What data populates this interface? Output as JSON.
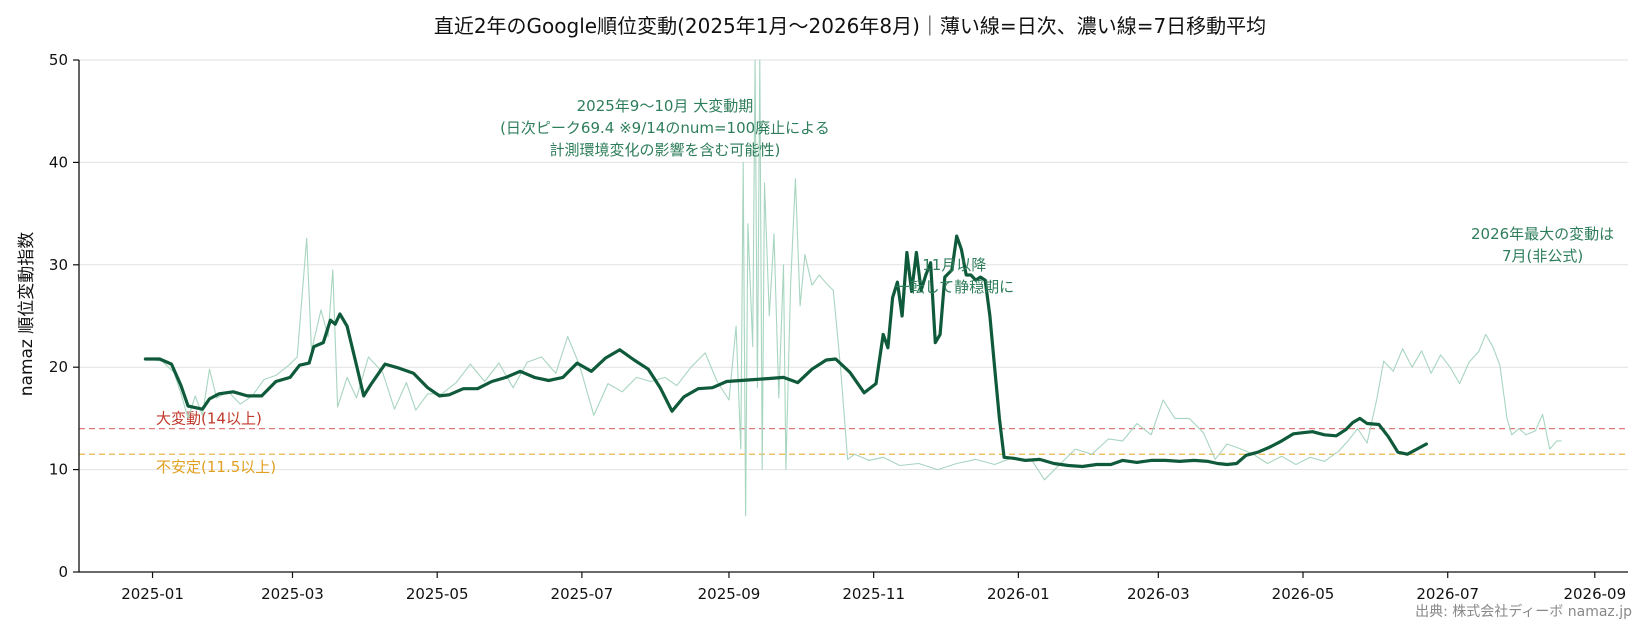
{
  "chart_data": {
    "type": "line",
    "title": "直近2年のGoogle順位変動(2025年1月〜2026年8月)｜薄い線=日次、濃い線=7日移動平均",
    "xlabel": "",
    "ylabel": "namaz 順位変動指数",
    "ylim": [
      0,
      50
    ],
    "xlim": [
      "2024-12-01",
      "2026-09-15"
    ],
    "yticks": [
      0,
      10,
      20,
      30,
      40,
      50
    ],
    "xticks": [
      "2025-01",
      "2025-03",
      "2025-05",
      "2025-07",
      "2025-09",
      "2025-11",
      "2026-01",
      "2026-03",
      "2026-05",
      "2026-07",
      "2026-09"
    ],
    "grid": "horizontal",
    "colors": {
      "daily": "#a8d5c0",
      "ma": "#0f5a3a",
      "big_change": "#e07b7b",
      "unstable": "#e8b64c",
      "big_change_text": "#c0392b",
      "unstable_text": "#e0a020",
      "annotation": "#2e7d5b"
    },
    "thresholds": [
      {
        "label": "大変動(14以上)",
        "value": 14,
        "color": "#e07b7b"
      },
      {
        "label": "不安定(11.5以上)",
        "value": 11.5,
        "color": "#e8b64c"
      }
    ],
    "annotations": [
      {
        "lines": [
          "2025年9〜10月 大変動期",
          "(日次ピーク69.4 ※9/14のnum=100廃止による",
          "計測環境変化の影響を含む可能性)"
        ],
        "x": "2025-08-05",
        "y": 45
      },
      {
        "lines": [
          "11月以降",
          "一転して静穏期に"
        ],
        "x": "2025-12-05",
        "y": 29.5
      },
      {
        "lines": [
          "2026年最大の変動は",
          "7月(非公式)"
        ],
        "x": "2026-08-10",
        "y": 32.5
      }
    ],
    "source": "出典: 株式会社ディーボ namaz.jp",
    "series": [
      {
        "role": "daily",
        "points": [
          [
            "2024-12-29",
            20.8
          ],
          [
            "2025-01-05",
            20.6
          ],
          [
            "2025-01-10",
            19.5
          ],
          [
            "2025-01-13",
            17.4
          ],
          [
            "2025-01-16",
            15.0
          ],
          [
            "2025-01-19",
            17.2
          ],
          [
            "2025-01-22",
            15.3
          ],
          [
            "2025-01-25",
            19.8
          ],
          [
            "2025-01-28",
            17.0
          ],
          [
            "2025-02-02",
            17.6
          ],
          [
            "2025-02-07",
            16.4
          ],
          [
            "2025-02-12",
            17.2
          ],
          [
            "2025-02-17",
            18.8
          ],
          [
            "2025-02-22",
            19.2
          ],
          [
            "2025-02-27",
            20.1
          ],
          [
            "2025-03-03",
            21.0
          ],
          [
            "2025-03-07",
            32.6
          ],
          [
            "2025-03-09",
            21.6
          ],
          [
            "2025-03-13",
            25.6
          ],
          [
            "2025-03-16",
            23.0
          ],
          [
            "2025-03-18",
            29.5
          ],
          [
            "2025-03-20",
            16.1
          ],
          [
            "2025-03-24",
            19.0
          ],
          [
            "2025-03-28",
            17.0
          ],
          [
            "2025-04-02",
            21.0
          ],
          [
            "2025-04-08",
            19.5
          ],
          [
            "2025-04-13",
            15.9
          ],
          [
            "2025-04-18",
            18.5
          ],
          [
            "2025-04-22",
            15.8
          ],
          [
            "2025-04-27",
            17.4
          ],
          [
            "2025-05-03",
            17.4
          ],
          [
            "2025-05-09",
            18.5
          ],
          [
            "2025-05-15",
            20.3
          ],
          [
            "2025-05-21",
            18.6
          ],
          [
            "2025-05-27",
            20.4
          ],
          [
            "2025-06-02",
            18.0
          ],
          [
            "2025-06-08",
            20.5
          ],
          [
            "2025-06-14",
            21.0
          ],
          [
            "2025-06-20",
            19.4
          ],
          [
            "2025-06-25",
            23.0
          ],
          [
            "2025-06-30",
            20.2
          ],
          [
            "2025-07-06",
            15.3
          ],
          [
            "2025-07-12",
            18.4
          ],
          [
            "2025-07-18",
            17.6
          ],
          [
            "2025-07-24",
            19.0
          ],
          [
            "2025-07-30",
            18.6
          ],
          [
            "2025-08-05",
            19.0
          ],
          [
            "2025-08-10",
            18.2
          ],
          [
            "2025-08-16",
            20.0
          ],
          [
            "2025-08-22",
            21.4
          ],
          [
            "2025-08-27",
            18.6
          ],
          [
            "2025-09-01",
            16.8
          ],
          [
            "2025-09-04",
            24.0
          ],
          [
            "2025-09-06",
            12.0
          ],
          [
            "2025-09-07",
            40.0
          ],
          [
            "2025-09-08",
            5.5
          ],
          [
            "2025-09-09",
            34.0
          ],
          [
            "2025-09-11",
            22.0
          ],
          [
            "2025-09-12",
            50.0
          ],
          [
            "2025-09-13",
            18.0
          ],
          [
            "2025-09-14",
            50.0
          ],
          [
            "2025-09-15",
            10.0
          ],
          [
            "2025-09-16",
            38.0
          ],
          [
            "2025-09-18",
            25.0
          ],
          [
            "2025-09-20",
            33.0
          ],
          [
            "2025-09-22",
            17.0
          ],
          [
            "2025-09-24",
            30.0
          ],
          [
            "2025-09-25",
            10.0
          ],
          [
            "2025-09-27",
            28.0
          ],
          [
            "2025-09-29",
            38.4
          ],
          [
            "2025-10-01",
            26.0
          ],
          [
            "2025-10-03",
            31.0
          ],
          [
            "2025-10-06",
            28.0
          ],
          [
            "2025-10-09",
            29.0
          ],
          [
            "2025-10-12",
            28.2
          ],
          [
            "2025-10-15",
            27.5
          ],
          [
            "2025-10-18",
            20.0
          ],
          [
            "2025-10-21",
            11.0
          ],
          [
            "2025-10-24",
            11.5
          ],
          [
            "2025-10-30",
            10.9
          ],
          [
            "2025-11-05",
            11.2
          ],
          [
            "2025-11-12",
            10.4
          ],
          [
            "2025-11-20",
            10.6
          ],
          [
            "2025-11-28",
            10.0
          ],
          [
            "2025-12-06",
            10.6
          ],
          [
            "2025-12-14",
            11.0
          ],
          [
            "2025-12-22",
            10.5
          ],
          [
            "2025-12-30",
            11.2
          ],
          [
            "2026-01-07",
            10.8
          ],
          [
            "2026-01-12",
            9.0
          ],
          [
            "2026-01-18",
            10.4
          ],
          [
            "2026-01-25",
            12.0
          ],
          [
            "2026-02-01",
            11.5
          ],
          [
            "2026-02-08",
            13.0
          ],
          [
            "2026-02-14",
            12.8
          ],
          [
            "2026-02-20",
            14.5
          ],
          [
            "2026-02-26",
            13.4
          ],
          [
            "2026-03-03",
            16.8
          ],
          [
            "2026-03-08",
            15.0
          ],
          [
            "2026-03-14",
            15.0
          ],
          [
            "2026-03-20",
            13.6
          ],
          [
            "2026-03-25",
            11.0
          ],
          [
            "2026-03-30",
            12.5
          ],
          [
            "2026-04-05",
            12.0
          ],
          [
            "2026-04-10",
            11.5
          ],
          [
            "2026-04-16",
            10.6
          ],
          [
            "2026-04-22",
            11.3
          ],
          [
            "2026-04-28",
            10.5
          ],
          [
            "2026-05-04",
            11.2
          ],
          [
            "2026-05-10",
            10.8
          ],
          [
            "2026-05-16",
            11.8
          ],
          [
            "2026-05-20",
            12.8
          ],
          [
            "2026-05-24",
            14.0
          ],
          [
            "2026-05-28",
            12.6
          ],
          [
            "2026-06-01",
            16.8
          ],
          [
            "2026-06-04",
            20.6
          ],
          [
            "2026-06-08",
            19.6
          ],
          [
            "2026-06-12",
            21.8
          ],
          [
            "2026-06-16",
            20.0
          ],
          [
            "2026-06-20",
            21.6
          ],
          [
            "2026-06-24",
            19.4
          ],
          [
            "2026-06-28",
            21.2
          ],
          [
            "2026-07-02",
            20.0
          ],
          [
            "2026-07-06",
            18.4
          ],
          [
            "2026-07-10",
            20.5
          ],
          [
            "2026-07-14",
            21.5
          ],
          [
            "2026-07-17",
            23.2
          ],
          [
            "2026-07-20",
            22.0
          ],
          [
            "2026-07-23",
            20.2
          ],
          [
            "2026-07-26",
            15.0
          ],
          [
            "2026-07-28",
            13.4
          ],
          [
            "2026-07-31",
            14.0
          ],
          [
            "2026-08-03",
            13.4
          ],
          [
            "2026-08-07",
            13.8
          ],
          [
            "2026-08-10",
            15.4
          ],
          [
            "2026-08-13",
            12.0
          ],
          [
            "2026-08-16",
            12.8
          ],
          [
            "2026-08-18",
            12.8
          ]
        ]
      },
      {
        "role": "ma",
        "points": [
          [
            "2024-12-29",
            20.8
          ],
          [
            "2025-01-04",
            20.8
          ],
          [
            "2025-01-09",
            20.3
          ],
          [
            "2025-01-13",
            18.2
          ],
          [
            "2025-01-16",
            16.2
          ],
          [
            "2025-01-22",
            15.9
          ],
          [
            "2025-01-25",
            16.9
          ],
          [
            "2025-01-29",
            17.4
          ],
          [
            "2025-02-04",
            17.6
          ],
          [
            "2025-02-10",
            17.2
          ],
          [
            "2025-02-16",
            17.2
          ],
          [
            "2025-02-22",
            18.6
          ],
          [
            "2025-02-28",
            19.0
          ],
          [
            "2025-03-04",
            20.2
          ],
          [
            "2025-03-08",
            20.4
          ],
          [
            "2025-03-10",
            22.0
          ],
          [
            "2025-03-14",
            22.4
          ],
          [
            "2025-03-17",
            24.6
          ],
          [
            "2025-03-19",
            24.2
          ],
          [
            "2025-03-21",
            25.2
          ],
          [
            "2025-03-24",
            24.0
          ],
          [
            "2025-03-28",
            20.2
          ],
          [
            "2025-03-31",
            17.2
          ],
          [
            "2025-04-03",
            18.3
          ],
          [
            "2025-04-09",
            20.3
          ],
          [
            "2025-04-15",
            19.9
          ],
          [
            "2025-04-21",
            19.4
          ],
          [
            "2025-04-27",
            18.0
          ],
          [
            "2025-05-02",
            17.2
          ],
          [
            "2025-05-06",
            17.3
          ],
          [
            "2025-05-12",
            17.9
          ],
          [
            "2025-05-18",
            17.9
          ],
          [
            "2025-05-24",
            18.6
          ],
          [
            "2025-05-30",
            19.0
          ],
          [
            "2025-06-05",
            19.6
          ],
          [
            "2025-06-11",
            19.0
          ],
          [
            "2025-06-17",
            18.7
          ],
          [
            "2025-06-23",
            19.0
          ],
          [
            "2025-06-29",
            20.4
          ],
          [
            "2025-07-05",
            19.6
          ],
          [
            "2025-07-11",
            20.9
          ],
          [
            "2025-07-17",
            21.7
          ],
          [
            "2025-07-23",
            20.7
          ],
          [
            "2025-07-29",
            19.8
          ],
          [
            "2025-08-03",
            18.0
          ],
          [
            "2025-08-08",
            15.7
          ],
          [
            "2025-08-13",
            17.1
          ],
          [
            "2025-08-19",
            17.9
          ],
          [
            "2025-08-25",
            18.0
          ],
          [
            "2025-08-31",
            18.6
          ],
          [
            "2025-09-06",
            18.7
          ],
          [
            "2025-09-12",
            18.8
          ],
          [
            "2025-09-18",
            18.9
          ],
          [
            "2025-09-24",
            19.0
          ],
          [
            "2025-09-30",
            18.5
          ],
          [
            "2025-10-06",
            19.8
          ],
          [
            "2025-10-12",
            20.7
          ],
          [
            "2025-10-16",
            20.8
          ],
          [
            "2025-10-22",
            19.5
          ],
          [
            "2025-10-28",
            17.5
          ],
          [
            "2025-11-02",
            18.4
          ],
          [
            "2025-11-05",
            23.2
          ],
          [
            "2025-11-07",
            21.9
          ],
          [
            "2025-11-09",
            26.8
          ],
          [
            "2025-11-11",
            28.3
          ],
          [
            "2025-11-13",
            25.0
          ],
          [
            "2025-11-15",
            31.2
          ],
          [
            "2025-11-17",
            27.4
          ],
          [
            "2025-11-19",
            31.2
          ],
          [
            "2025-11-21",
            27.5
          ],
          [
            "2025-11-23",
            29.0
          ],
          [
            "2025-11-25",
            30.2
          ],
          [
            "2025-11-27",
            22.4
          ],
          [
            "2025-11-29",
            23.2
          ],
          [
            "2025-12-01",
            28.8
          ],
          [
            "2025-12-04",
            29.5
          ],
          [
            "2025-12-06",
            32.8
          ],
          [
            "2025-12-08",
            31.5
          ],
          [
            "2025-12-10",
            29.0
          ],
          [
            "2025-12-12",
            29.0
          ],
          [
            "2025-12-14",
            28.5
          ],
          [
            "2025-12-16",
            28.8
          ],
          [
            "2025-12-18",
            28.5
          ],
          [
            "2025-12-20",
            25.0
          ],
          [
            "2025-12-22",
            20.0
          ],
          [
            "2025-12-24",
            15.0
          ],
          [
            "2025-12-26",
            11.2
          ],
          [
            "2025-12-30",
            11.1
          ],
          [
            "2026-01-04",
            10.9
          ],
          [
            "2026-01-10",
            11.0
          ],
          [
            "2026-01-16",
            10.6
          ],
          [
            "2026-01-22",
            10.4
          ],
          [
            "2026-01-28",
            10.3
          ],
          [
            "2026-02-03",
            10.5
          ],
          [
            "2026-02-09",
            10.5
          ],
          [
            "2026-02-14",
            10.9
          ],
          [
            "2026-02-20",
            10.7
          ],
          [
            "2026-02-26",
            10.9
          ],
          [
            "2026-03-04",
            10.9
          ],
          [
            "2026-03-10",
            10.8
          ],
          [
            "2026-03-16",
            10.9
          ],
          [
            "2026-03-22",
            10.8
          ],
          [
            "2026-03-26",
            10.6
          ],
          [
            "2026-03-30",
            10.5
          ],
          [
            "2026-04-03",
            10.6
          ],
          [
            "2026-04-07",
            11.4
          ],
          [
            "2026-04-12",
            11.7
          ],
          [
            "2026-04-17",
            12.2
          ],
          [
            "2026-04-22",
            12.8
          ],
          [
            "2026-04-27",
            13.5
          ],
          [
            "2026-05-01",
            13.6
          ],
          [
            "2026-05-05",
            13.7
          ],
          [
            "2026-05-10",
            13.4
          ],
          [
            "2026-05-15",
            13.3
          ],
          [
            "2026-05-19",
            13.9
          ],
          [
            "2026-05-22",
            14.6
          ],
          [
            "2026-05-25",
            15.0
          ],
          [
            "2026-05-28",
            14.5
          ],
          [
            "2026-06-02",
            14.4
          ],
          [
            "2026-06-06",
            13.2
          ],
          [
            "2026-06-10",
            11.7
          ],
          [
            "2026-06-14",
            11.5
          ],
          [
            "2026-06-18",
            12.0
          ],
          [
            "2026-06-22",
            12.5
          ]
        ]
      }
    ]
  },
  "page": {
    "title": "直近2年のGoogle順位変動(2025年1月〜2026年8月)｜薄い線=日次、濃い線=7日移動平均",
    "ylabel": "namaz 順位変動指数",
    "source": "出典: 株式会社ディーボ namaz.jp"
  }
}
